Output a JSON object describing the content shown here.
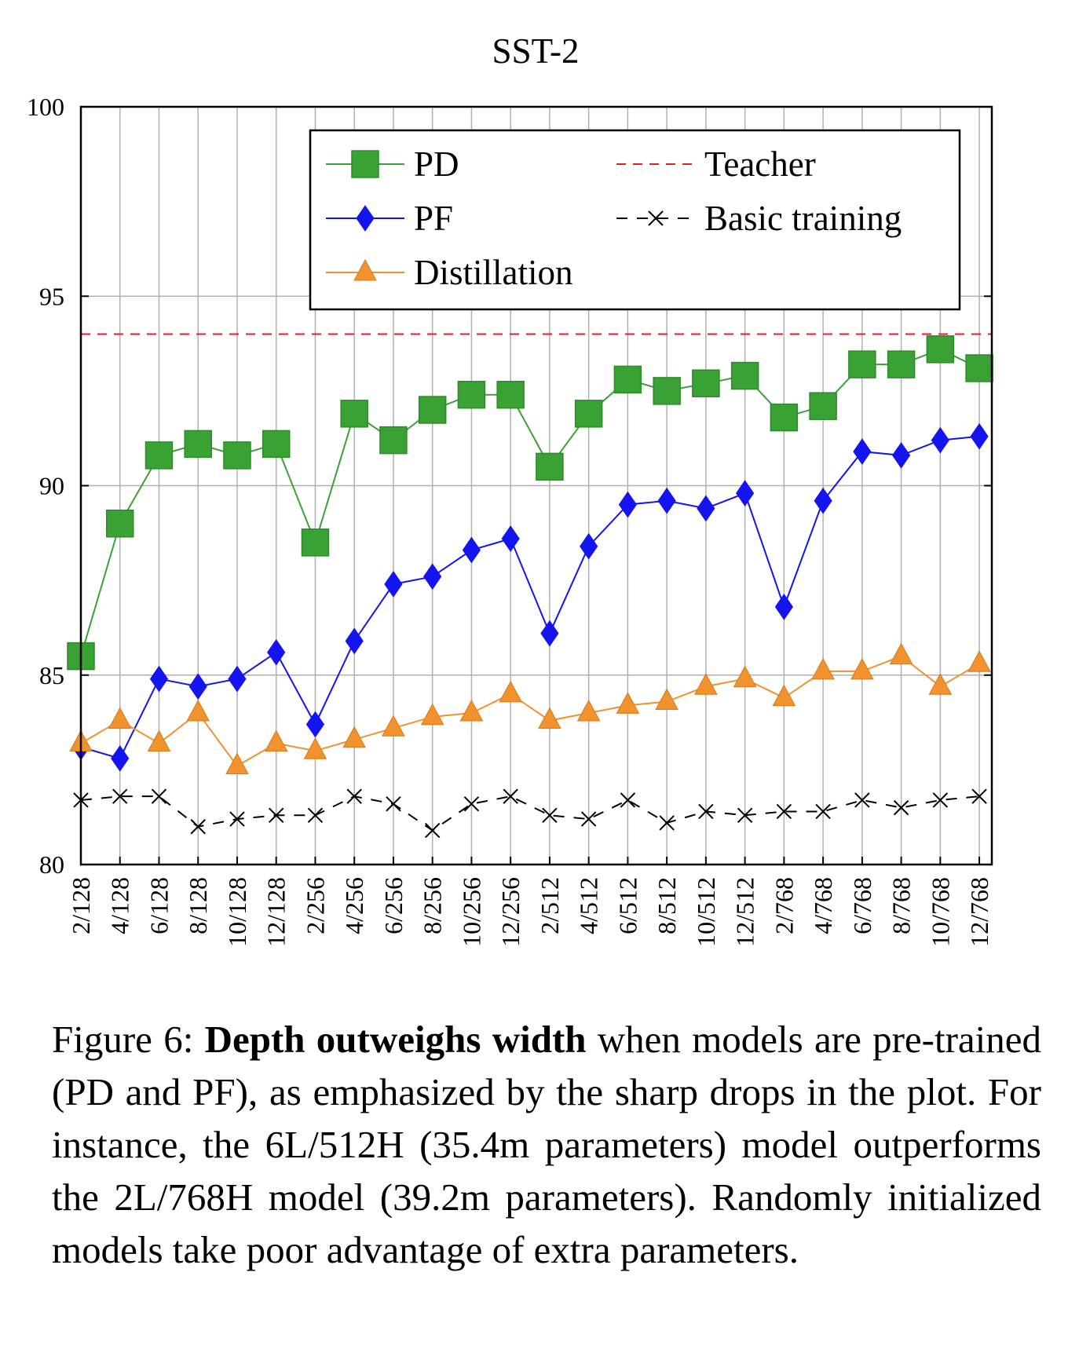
{
  "chart_data": {
    "type": "line",
    "title": "SST-2",
    "xlabel": "",
    "ylabel": "",
    "categories": [
      "2/128",
      "4/128",
      "6/128",
      "8/128",
      "10/128",
      "12/128",
      "2/256",
      "4/256",
      "6/256",
      "8/256",
      "10/256",
      "12/256",
      "2/512",
      "4/512",
      "6/512",
      "8/512",
      "10/512",
      "12/512",
      "2/768",
      "4/768",
      "6/768",
      "8/768",
      "10/768",
      "12/768"
    ],
    "ylim": [
      80,
      100
    ],
    "yticks": [
      "80",
      "85",
      "90",
      "95",
      "100"
    ],
    "grid": true,
    "legend_position": "top-right",
    "series": [
      {
        "name": "PD",
        "color": "#3aa135",
        "marker": "square",
        "values": [
          85.5,
          89.0,
          90.8,
          91.1,
          90.8,
          91.1,
          88.5,
          91.9,
          91.2,
          92.0,
          92.4,
          92.4,
          90.5,
          91.9,
          92.8,
          92.5,
          92.7,
          92.9,
          91.8,
          92.1,
          93.2,
          93.2,
          93.6,
          93.1
        ]
      },
      {
        "name": "PF",
        "color": "#1414f0",
        "marker": "diamond",
        "values": [
          83.1,
          82.8,
          84.9,
          84.7,
          84.9,
          85.6,
          83.7,
          85.9,
          87.4,
          87.6,
          88.3,
          88.6,
          86.1,
          88.4,
          89.5,
          89.6,
          89.4,
          89.8,
          86.8,
          89.6,
          90.9,
          90.8,
          91.2,
          91.3
        ]
      },
      {
        "name": "Distillation",
        "color": "#f0922e",
        "marker": "triangle",
        "values": [
          83.2,
          83.8,
          83.2,
          84.0,
          82.6,
          83.2,
          83.0,
          83.3,
          83.6,
          83.9,
          84.0,
          84.5,
          83.8,
          84.0,
          84.2,
          84.3,
          84.7,
          84.9,
          84.4,
          85.1,
          85.1,
          85.5,
          84.7,
          85.3
        ]
      },
      {
        "name": "Basic training",
        "color": "#000000",
        "marker": "cross",
        "dash": "dashed",
        "values": [
          81.7,
          81.8,
          81.8,
          81.0,
          81.2,
          81.3,
          81.3,
          81.8,
          81.6,
          80.9,
          81.6,
          81.8,
          81.3,
          81.2,
          81.7,
          81.1,
          81.4,
          81.3,
          81.4,
          81.4,
          81.7,
          81.5,
          81.7,
          81.8
        ]
      },
      {
        "name": "Teacher",
        "color": "#e02020",
        "marker": "none",
        "dash": "dashed",
        "constant": 94.0
      }
    ]
  },
  "caption": {
    "prefix": "Figure 6: ",
    "bold": "Depth outweighs width",
    "rest": " when models are pre-trained (PD and PF), as emphasized by the sharp drops in the plot. For instance, the 6L/512H (35.4m parameters) model outperforms the 2L/768H model (39.2m parameters). Randomly initialized models take poor advantage of extra parameters."
  }
}
